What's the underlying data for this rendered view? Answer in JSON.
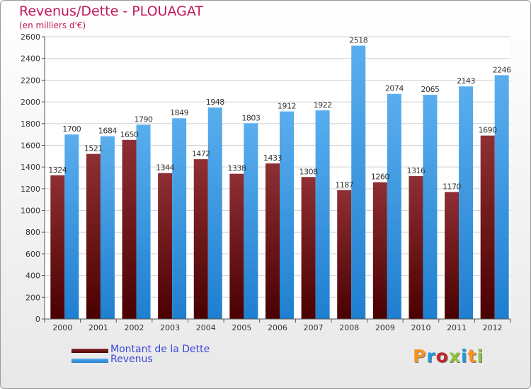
{
  "title": "Revenus/Dette - PLOUAGAT",
  "subtitle": "(en milliers d'€)",
  "logo": {
    "text": "Proxiti",
    "colors": [
      "#f7931e",
      "#1d9be0",
      "#c1272d",
      "#8cc63f",
      "#1d9be0",
      "#f7931e",
      "#8cc63f"
    ]
  },
  "legend": [
    {
      "label": "Montant de la Dette",
      "color": "#6b0a0a"
    },
    {
      "label": "Revenus",
      "color": "#3d9be6"
    }
  ],
  "chart_data": {
    "type": "bar",
    "categories": [
      "2000",
      "2001",
      "2002",
      "2003",
      "2004",
      "2005",
      "2006",
      "2007",
      "2008",
      "2009",
      "2010",
      "2011",
      "2012"
    ],
    "series": [
      {
        "name": "Montant de la Dette",
        "color": "#6b0a0a",
        "values": [
          1324,
          1521,
          1650,
          1344,
          1472,
          1338,
          1433,
          1308,
          1187,
          1260,
          1316,
          1170,
          1690
        ]
      },
      {
        "name": "Revenus",
        "color": "#3d9be6",
        "values": [
          1700,
          1684,
          1790,
          1849,
          1948,
          1803,
          1912,
          1922,
          2518,
          2074,
          2065,
          2143,
          2246
        ]
      }
    ],
    "ylim": [
      0,
      2600
    ],
    "yticks": [
      0,
      200,
      400,
      600,
      800,
      1000,
      1200,
      1400,
      1600,
      1800,
      2000,
      2200,
      2400,
      2600
    ],
    "grid": true,
    "legend_position": "bottom-left",
    "value_labels": true
  }
}
